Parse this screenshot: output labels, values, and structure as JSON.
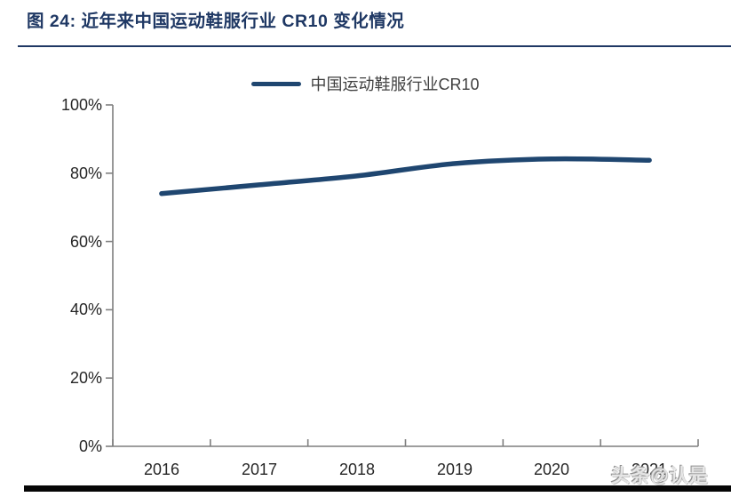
{
  "figure": {
    "title": "图 24: 近年来中国运动鞋服行业 CR10 变化情况",
    "watermark": "头条@认是"
  },
  "chart_data": {
    "type": "line",
    "title": "图 24: 近年来中国运动鞋服行业 CR10 变化情况",
    "legend_entries": [
      "中国运动鞋服行业CR10"
    ],
    "legend_position": "top-center",
    "categories": [
      "2016",
      "2017",
      "2018",
      "2019",
      "2020",
      "2021"
    ],
    "series": [
      {
        "name": "中国运动鞋服行业CR10",
        "values": [
          74.0,
          76.6,
          79.2,
          82.8,
          84.2,
          83.8
        ]
      }
    ],
    "unit": "%",
    "ylim": [
      0,
      100
    ],
    "y_tick_labels": [
      "0%",
      "20%",
      "40%",
      "60%",
      "80%",
      "100%"
    ],
    "grid": false,
    "line_color": "#1F4670",
    "axis_color": "#7F7F7F",
    "title_color": "#1F3864",
    "tick_label_color": "#262626"
  }
}
